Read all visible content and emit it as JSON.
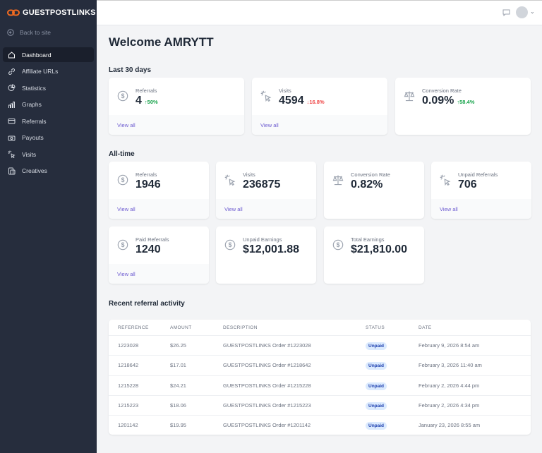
{
  "brand": {
    "name": "GUESTPOSTLINKS",
    "color": "#f26b21"
  },
  "sidebar": {
    "back": "Back to site",
    "items": [
      {
        "label": "Dashboard",
        "icon": "home-icon",
        "active": true
      },
      {
        "label": "Affiliate URLs",
        "icon": "link-icon"
      },
      {
        "label": "Statistics",
        "icon": "pie-chart-icon"
      },
      {
        "label": "Graphs",
        "icon": "bar-chart-icon"
      },
      {
        "label": "Referrals",
        "icon": "credit-card-icon"
      },
      {
        "label": "Payouts",
        "icon": "cash-icon"
      },
      {
        "label": "Visits",
        "icon": "cursor-click-icon"
      },
      {
        "label": "Creatives",
        "icon": "image-icon"
      }
    ]
  },
  "header": {
    "title": "Welcome AMRYTT"
  },
  "last30": {
    "title": "Last 30 days",
    "cards": [
      {
        "label": "Referrals",
        "value": "4",
        "change": "50%",
        "dir": "up",
        "link": "View all",
        "icon": "dollar-icon"
      },
      {
        "label": "Visits",
        "value": "4594",
        "change": "16.8%",
        "dir": "down",
        "link": "View all",
        "icon": "cursor-click-icon"
      },
      {
        "label": "Conversion Rate",
        "value": "0.09%",
        "change": "58.4%",
        "dir": "up",
        "icon": "scale-icon"
      }
    ]
  },
  "alltime": {
    "title": "All-time",
    "cards": [
      {
        "label": "Referrals",
        "value": "1946",
        "link": "View all",
        "icon": "dollar-icon"
      },
      {
        "label": "Visits",
        "value": "236875",
        "link": "View all",
        "icon": "cursor-click-icon"
      },
      {
        "label": "Conversion Rate",
        "value": "0.82%",
        "icon": "scale-icon"
      },
      {
        "label": "Unpaid Referrals",
        "value": "706",
        "link": "View all",
        "icon": "cursor-click-icon"
      },
      {
        "label": "Paid Referrals",
        "value": "1240",
        "link": "View all",
        "icon": "dollar-icon"
      },
      {
        "label": "Unpaid Earnings",
        "value": "$12,001.88",
        "icon": "dollar-icon"
      },
      {
        "label": "Total Earnings",
        "value": "$21,810.00",
        "icon": "dollar-icon"
      }
    ]
  },
  "recent": {
    "title": "Recent referral activity",
    "columns": [
      "REFERENCE",
      "AMOUNT",
      "DESCRIPTION",
      "STATUS",
      "DATE"
    ],
    "rows": [
      [
        "1223028",
        "$26.25",
        "GUESTPOSTLINKS Order #1223028",
        "Unpaid",
        "February 9, 2026 8:54 am"
      ],
      [
        "1218642",
        "$17.01",
        "GUESTPOSTLINKS Order #1218642",
        "Unpaid",
        "February 3, 2026 11:40 am"
      ],
      [
        "1215228",
        "$24.21",
        "GUESTPOSTLINKS Order #1215228",
        "Unpaid",
        "February 2, 2026 4:44 pm"
      ],
      [
        "1215223",
        "$18.06",
        "GUESTPOSTLINKS Order #1215223",
        "Unpaid",
        "February 2, 2026 4:34 pm"
      ],
      [
        "1201142",
        "$19.95",
        "GUESTPOSTLINKS Order #1201142",
        "Unpaid",
        "January 23, 2026 8:55 am"
      ]
    ]
  }
}
